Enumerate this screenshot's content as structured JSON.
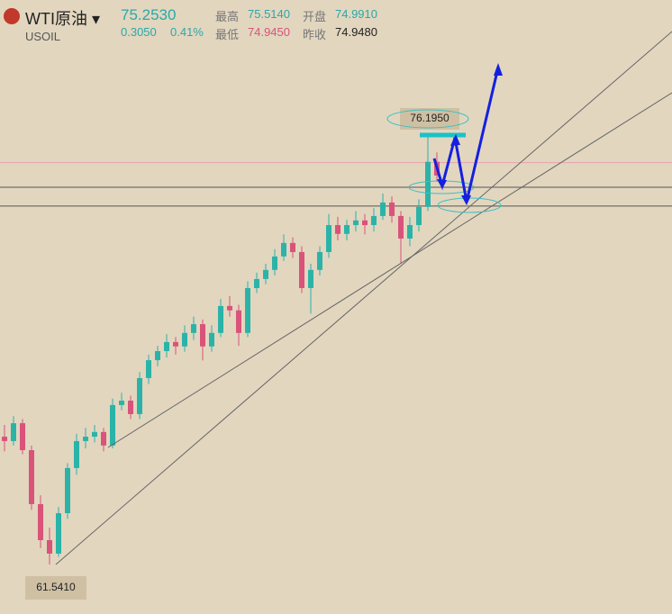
{
  "header": {
    "name": "WTI原油",
    "symbol": "USOIL",
    "price": "75.2530",
    "change": "0.3050",
    "change_pct": "0.41%",
    "stats": [
      {
        "label": "最高",
        "value": "75.5140"
      },
      {
        "label": "开盘",
        "value": "74.9910"
      },
      {
        "label": "最低",
        "value": "74.9450"
      },
      {
        "label": "昨收",
        "value": "74.9480"
      }
    ]
  },
  "chart_data": {
    "type": "candlestick",
    "ylim": [
      59.85,
      80.8
    ],
    "up_color": "#2bb3a8",
    "down_color": "#d9537a",
    "candles": [
      [
        65.9,
        66.3,
        65.4,
        65.75
      ],
      [
        65.75,
        66.6,
        65.6,
        66.36
      ],
      [
        66.36,
        66.5,
        65.3,
        65.44
      ],
      [
        65.44,
        65.6,
        63.4,
        63.6
      ],
      [
        63.6,
        63.9,
        62.1,
        62.37
      ],
      [
        62.37,
        62.8,
        61.541,
        61.91
      ],
      [
        61.91,
        63.5,
        61.8,
        63.29
      ],
      [
        63.29,
        65.0,
        63.1,
        64.83
      ],
      [
        64.83,
        66.0,
        64.6,
        65.75
      ],
      [
        65.75,
        66.2,
        65.5,
        65.9
      ],
      [
        65.9,
        66.3,
        65.7,
        66.06
      ],
      [
        66.06,
        66.2,
        65.4,
        65.6
      ],
      [
        65.6,
        67.2,
        65.5,
        66.98
      ],
      [
        66.98,
        67.4,
        66.8,
        67.13
      ],
      [
        67.13,
        67.3,
        66.5,
        66.67
      ],
      [
        66.67,
        68.1,
        66.5,
        67.9
      ],
      [
        67.9,
        68.7,
        67.7,
        68.51
      ],
      [
        68.51,
        69.0,
        68.3,
        68.82
      ],
      [
        68.82,
        69.4,
        68.6,
        69.13
      ],
      [
        69.13,
        69.3,
        68.7,
        68.98
      ],
      [
        68.98,
        69.7,
        68.8,
        69.44
      ],
      [
        69.44,
        70.0,
        69.2,
        69.74
      ],
      [
        69.74,
        69.9,
        68.5,
        68.98
      ],
      [
        68.98,
        69.7,
        68.8,
        69.44
      ],
      [
        69.44,
        70.6,
        69.3,
        70.36
      ],
      [
        70.36,
        70.7,
        70.0,
        70.21
      ],
      [
        70.21,
        70.4,
        69.0,
        69.44
      ],
      [
        69.44,
        71.2,
        69.3,
        70.97
      ],
      [
        70.97,
        71.5,
        70.8,
        71.28
      ],
      [
        71.28,
        71.8,
        71.1,
        71.59
      ],
      [
        71.59,
        72.3,
        71.4,
        72.05
      ],
      [
        72.05,
        72.8,
        71.9,
        72.51
      ],
      [
        72.51,
        72.7,
        72.0,
        72.2
      ],
      [
        72.2,
        72.4,
        70.8,
        70.97
      ],
      [
        70.97,
        71.8,
        70.1,
        71.59
      ],
      [
        71.59,
        72.4,
        71.4,
        72.2
      ],
      [
        72.2,
        73.5,
        72.0,
        73.12
      ],
      [
        73.12,
        73.4,
        72.6,
        72.82
      ],
      [
        72.82,
        73.3,
        72.6,
        73.12
      ],
      [
        73.12,
        73.6,
        72.9,
        73.28
      ],
      [
        73.28,
        73.5,
        72.8,
        73.12
      ],
      [
        73.12,
        73.7,
        72.9,
        73.43
      ],
      [
        73.43,
        74.2,
        73.3,
        73.89
      ],
      [
        73.89,
        74.1,
        73.2,
        73.43
      ],
      [
        73.43,
        73.6,
        71.8,
        72.66
      ],
      [
        72.66,
        73.4,
        72.4,
        73.12
      ],
      [
        73.12,
        74.0,
        72.9,
        73.74
      ],
      [
        73.74,
        76.195,
        73.6,
        75.28
      ],
      [
        75.28,
        75.6,
        74.6,
        74.81
      ]
    ],
    "hlines": [
      {
        "value": 75.253,
        "color": "#e8a0b0"
      },
      {
        "value": 74.41,
        "color": "#555"
      },
      {
        "value": 73.77,
        "color": "#555"
      }
    ],
    "annotations": [
      "76.1950",
      "61.5410"
    ]
  }
}
